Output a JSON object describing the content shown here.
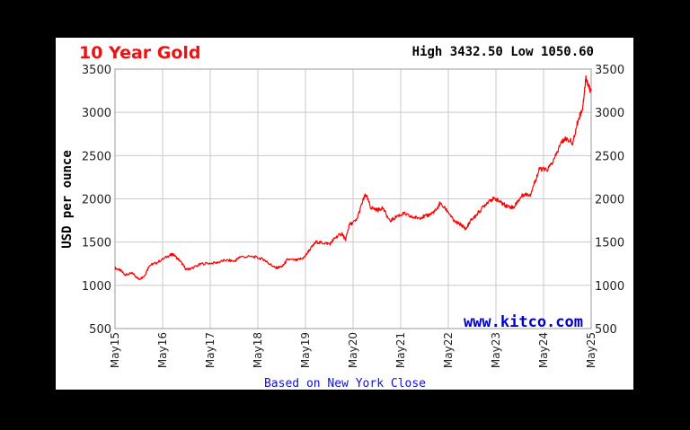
{
  "chart_data": {
    "type": "line",
    "title": "10 Year Gold",
    "high_label": "High",
    "high_value": "3432.50",
    "low_label": "Low",
    "low_value": "1050.60",
    "ylabel": "USD per ounce",
    "ylim": [
      500,
      3500
    ],
    "yticks": [
      500,
      1000,
      1500,
      2000,
      2500,
      3000,
      3500
    ],
    "xlim": [
      2015.38,
      2025.38
    ],
    "xticks": [
      {
        "label": "May15",
        "x": 2015.38
      },
      {
        "label": "May16",
        "x": 2016.38
      },
      {
        "label": "May17",
        "x": 2017.38
      },
      {
        "label": "May18",
        "x": 2018.38
      },
      {
        "label": "May19",
        "x": 2019.38
      },
      {
        "label": "May20",
        "x": 2020.38
      },
      {
        "label": "May21",
        "x": 2021.38
      },
      {
        "label": "May22",
        "x": 2022.38
      },
      {
        "label": "May23",
        "x": 2023.38
      },
      {
        "label": "May24",
        "x": 2024.38
      },
      {
        "label": "May25",
        "x": 2025.38
      }
    ],
    "grid": true,
    "series": [
      {
        "color": "#ff0000",
        "x": [
          2015.38,
          2015.5,
          2015.6,
          2015.75,
          2015.88,
          2016.0,
          2016.1,
          2016.25,
          2016.5,
          2016.6,
          2016.75,
          2016.88,
          2017.0,
          2017.2,
          2017.5,
          2017.7,
          2017.9,
          2018.0,
          2018.3,
          2018.5,
          2018.6,
          2018.75,
          2018.9,
          2019.0,
          2019.2,
          2019.35,
          2019.45,
          2019.6,
          2019.75,
          2019.9,
          2020.0,
          2020.15,
          2020.22,
          2020.3,
          2020.45,
          2020.6,
          2020.65,
          2020.75,
          2020.9,
          2021.0,
          2021.15,
          2021.3,
          2021.45,
          2021.6,
          2021.75,
          2021.9,
          2022.0,
          2022.15,
          2022.2,
          2022.38,
          2022.5,
          2022.65,
          2022.75,
          2022.85,
          2022.95,
          2023.1,
          2023.25,
          2023.38,
          2023.5,
          2023.6,
          2023.75,
          2023.85,
          2023.95,
          2024.1,
          2024.2,
          2024.3,
          2024.45,
          2024.6,
          2024.75,
          2024.85,
          2025.0,
          2025.1,
          2025.2,
          2025.27,
          2025.32,
          2025.38
        ],
        "y": [
          1200,
          1170,
          1120,
          1140,
          1070,
          1110,
          1230,
          1260,
          1340,
          1360,
          1280,
          1180,
          1200,
          1250,
          1260,
          1290,
          1280,
          1330,
          1330,
          1300,
          1260,
          1200,
          1220,
          1300,
          1290,
          1320,
          1400,
          1500,
          1490,
          1480,
          1550,
          1600,
          1520,
          1700,
          1750,
          2000,
          2050,
          1900,
          1870,
          1900,
          1740,
          1800,
          1830,
          1790,
          1780,
          1800,
          1820,
          1880,
          1950,
          1850,
          1740,
          1700,
          1650,
          1750,
          1800,
          1900,
          1990,
          2000,
          1950,
          1920,
          1900,
          1980,
          2050,
          2050,
          2200,
          2350,
          2330,
          2450,
          2650,
          2700,
          2650,
          2900,
          3050,
          3400,
          3300,
          3250
        ]
      }
    ],
    "footer": "Based on New York Close",
    "brand": "www.kitco.com"
  }
}
